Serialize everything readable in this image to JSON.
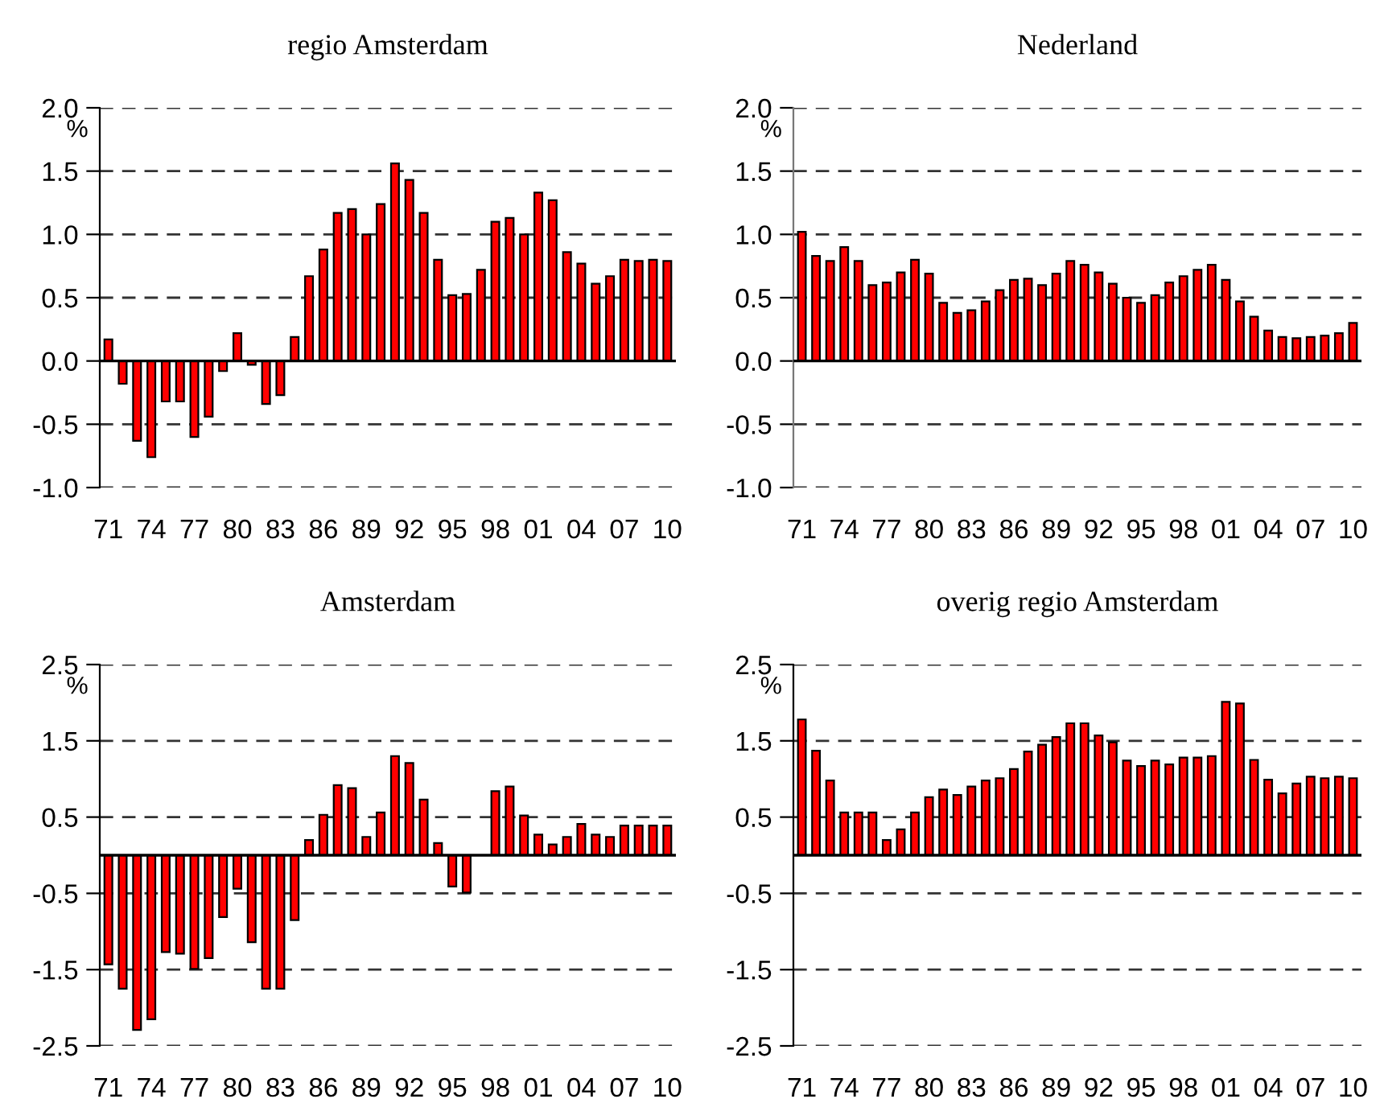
{
  "chart_data": [
    {
      "type": "bar",
      "title": "regio Amsterdam",
      "ylabel": "%",
      "categories": [
        "71",
        null,
        null,
        "74",
        null,
        null,
        "77",
        null,
        null,
        "80",
        null,
        null,
        "83",
        null,
        null,
        "86",
        null,
        null,
        "89",
        null,
        null,
        "92",
        null,
        null,
        "95",
        null,
        null,
        "98",
        null,
        null,
        "01",
        null,
        null,
        "04",
        null,
        null,
        "07",
        null,
        null,
        "10"
      ],
      "series": [
        {
          "color": "#ff0000",
          "values": [
            0.17,
            -0.18,
            -0.63,
            -0.76,
            -0.32,
            -0.32,
            -0.6,
            -0.44,
            -0.08,
            0.22,
            -0.03,
            -0.34,
            -0.27,
            0.19,
            0.67,
            0.88,
            1.17,
            1.2,
            1.0,
            1.24,
            1.56,
            1.43,
            1.17,
            0.8,
            0.52,
            0.53,
            0.72,
            1.1,
            1.13,
            1.0,
            1.33,
            1.27,
            0.86,
            0.77,
            0.61,
            0.67,
            0.8,
            0.79,
            0.8,
            0.79
          ]
        }
      ],
      "ylim": [
        -1.0,
        2.0
      ],
      "yticks": [
        {
          "value": -1,
          "label": "-1.0"
        },
        -0.5,
        {
          "value": 0,
          "label": "0.0"
        },
        0.5,
        {
          "value": 1,
          "label": "1.0"
        },
        1.5,
        {
          "value": 2,
          "label": "2.0"
        }
      ],
      "grid": "y",
      "line_style": "dashed"
    },
    {
      "type": "bar",
      "title": "Nederland",
      "ylabel": "%",
      "categories": [
        "71",
        null,
        null,
        "74",
        null,
        null,
        "77",
        null,
        null,
        "80",
        null,
        null,
        "83",
        null,
        null,
        "86",
        null,
        null,
        "89",
        null,
        null,
        "92",
        null,
        null,
        "95",
        null,
        null,
        "98",
        null,
        null,
        "01",
        null,
        null,
        "04",
        null,
        null,
        "07",
        null,
        null,
        "10"
      ],
      "series": [
        {
          "color": "#ff0000",
          "values": [
            1.02,
            0.83,
            0.79,
            0.9,
            0.79,
            0.6,
            0.62,
            0.7,
            0.8,
            0.69,
            0.46,
            0.38,
            0.4,
            0.47,
            0.56,
            0.64,
            0.65,
            0.6,
            0.69,
            0.79,
            0.76,
            0.7,
            0.61,
            0.5,
            0.46,
            0.52,
            0.62,
            0.67,
            0.72,
            0.76,
            0.64,
            0.47,
            0.35,
            0.24,
            0.19,
            0.18,
            0.19,
            0.2,
            0.22,
            0.3
          ]
        }
      ],
      "ylim": [
        -1.0,
        2.0
      ],
      "yticks": [
        {
          "value": -1,
          "label": "-1.0"
        },
        -0.5,
        {
          "value": 0,
          "label": "0.0"
        },
        0.5,
        {
          "value": 1,
          "label": "1.0"
        },
        1.5,
        {
          "value": 2,
          "label": "2.0"
        }
      ],
      "grid": "y",
      "line_style": "dashed"
    },
    {
      "type": "bar",
      "title": "Amsterdam",
      "ylabel": "%",
      "categories": [
        "71",
        null,
        null,
        "74",
        null,
        null,
        "77",
        null,
        null,
        "80",
        null,
        null,
        "83",
        null,
        null,
        "86",
        null,
        null,
        "89",
        null,
        null,
        "92",
        null,
        null,
        "95",
        null,
        null,
        "98",
        null,
        null,
        "01",
        null,
        null,
        "04",
        null,
        null,
        "07",
        null,
        null,
        "10"
      ],
      "series": [
        {
          "color": "#ff0000",
          "values": [
            -1.43,
            -1.75,
            -2.29,
            -2.15,
            -1.27,
            -1.29,
            -1.49,
            -1.35,
            -0.81,
            -0.44,
            -1.14,
            -1.75,
            -1.75,
            -0.85,
            0.2,
            0.53,
            0.92,
            0.88,
            0.24,
            0.56,
            1.3,
            1.21,
            0.73,
            0.16,
            -0.41,
            -0.49,
            null,
            0.84,
            0.9,
            0.52,
            0.27,
            0.14,
            0.24,
            0.41,
            0.27,
            0.24,
            0.39,
            0.39,
            0.39,
            0.39
          ]
        }
      ],
      "ylim": [
        -2.5,
        2.5
      ],
      "yticks": [
        -2.5,
        -1.5,
        -0.5,
        0.5,
        1.5,
        2.5
      ],
      "grid": "y",
      "line_style": "dashed"
    },
    {
      "type": "bar",
      "title": "overig regio Amsterdam",
      "ylabel": "%",
      "categories": [
        "71",
        null,
        null,
        "74",
        null,
        null,
        "77",
        null,
        null,
        "80",
        null,
        null,
        "83",
        null,
        null,
        "86",
        null,
        null,
        "89",
        null,
        null,
        "92",
        null,
        null,
        "95",
        null,
        null,
        "98",
        null,
        null,
        "01",
        null,
        null,
        "04",
        null,
        null,
        "07",
        null,
        null,
        "10"
      ],
      "series": [
        {
          "color": "#ff0000",
          "values": [
            1.78,
            1.37,
            0.98,
            0.56,
            0.56,
            0.56,
            0.2,
            0.34,
            0.56,
            0.76,
            0.86,
            0.79,
            0.9,
            0.98,
            1.01,
            1.13,
            1.36,
            1.45,
            1.55,
            1.73,
            1.73,
            1.57,
            1.48,
            1.24,
            1.17,
            1.24,
            1.19,
            1.28,
            1.28,
            1.3,
            2.01,
            1.99,
            1.25,
            0.99,
            0.81,
            0.94,
            1.03,
            1.01,
            1.03,
            1.01
          ]
        }
      ],
      "ylim": [
        -2.5,
        2.5
      ],
      "yticks": [
        -2.5,
        -1.5,
        -0.5,
        0.5,
        1.5,
        2.5
      ],
      "grid": "y",
      "line_style": "dashed"
    }
  ]
}
